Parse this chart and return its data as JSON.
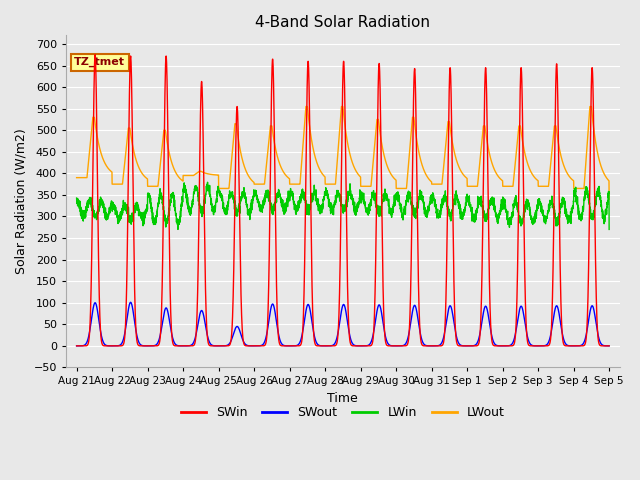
{
  "title": "4-Band Solar Radiation",
  "xlabel": "Time",
  "ylabel": "Solar Radiation (W/m2)",
  "ylim": [
    -50,
    720
  ],
  "background_color": "#e8e8e8",
  "plot_background": "#e8e8e8",
  "grid_color": "white",
  "annotation_text": "TZ_tmet",
  "annotation_color": "#8b0000",
  "annotation_bg": "#ffff99",
  "annotation_border": "#cc6600",
  "colors": {
    "SWin": "red",
    "SWout": "blue",
    "LWin": "#00cc00",
    "LWout": "orange"
  },
  "n_days": 15,
  "xtick_labels": [
    "Aug 21",
    "Aug 22",
    "Aug 23",
    "Aug 24",
    "Aug 25",
    "Aug 26",
    "Aug 27",
    "Aug 28",
    "Aug 29",
    "Aug 30",
    "Aug 31",
    "Sep 1",
    "Sep 2",
    "Sep 3",
    "Sep 4",
    "Sep 5"
  ],
  "SWin_peaks": [
    675,
    672,
    672,
    613,
    555,
    665,
    660,
    660,
    655,
    643,
    645,
    645,
    645,
    654,
    645,
    648
  ],
  "SWout_peaks": [
    100,
    101,
    88,
    82,
    45,
    97,
    96,
    96,
    95,
    94,
    93,
    92,
    92,
    93,
    93,
    92
  ],
  "LWout_night": [
    390,
    375,
    370,
    395,
    365,
    375,
    375,
    375,
    370,
    365,
    375,
    370,
    370,
    370,
    365,
    415
  ],
  "LWout_day_peaks": [
    530,
    505,
    500,
    405,
    515,
    510,
    555,
    555,
    525,
    530,
    520,
    510,
    510,
    510,
    555,
    555
  ],
  "LWin_base": [
    300,
    295,
    285,
    310,
    310,
    315,
    315,
    315,
    310,
    305,
    300,
    295,
    285,
    290,
    295,
    300
  ],
  "LWin_peak": [
    335,
    325,
    350,
    370,
    355,
    355,
    355,
    355,
    350,
    350,
    345,
    340,
    335,
    335,
    360,
    360
  ],
  "linewidth": 1.0
}
